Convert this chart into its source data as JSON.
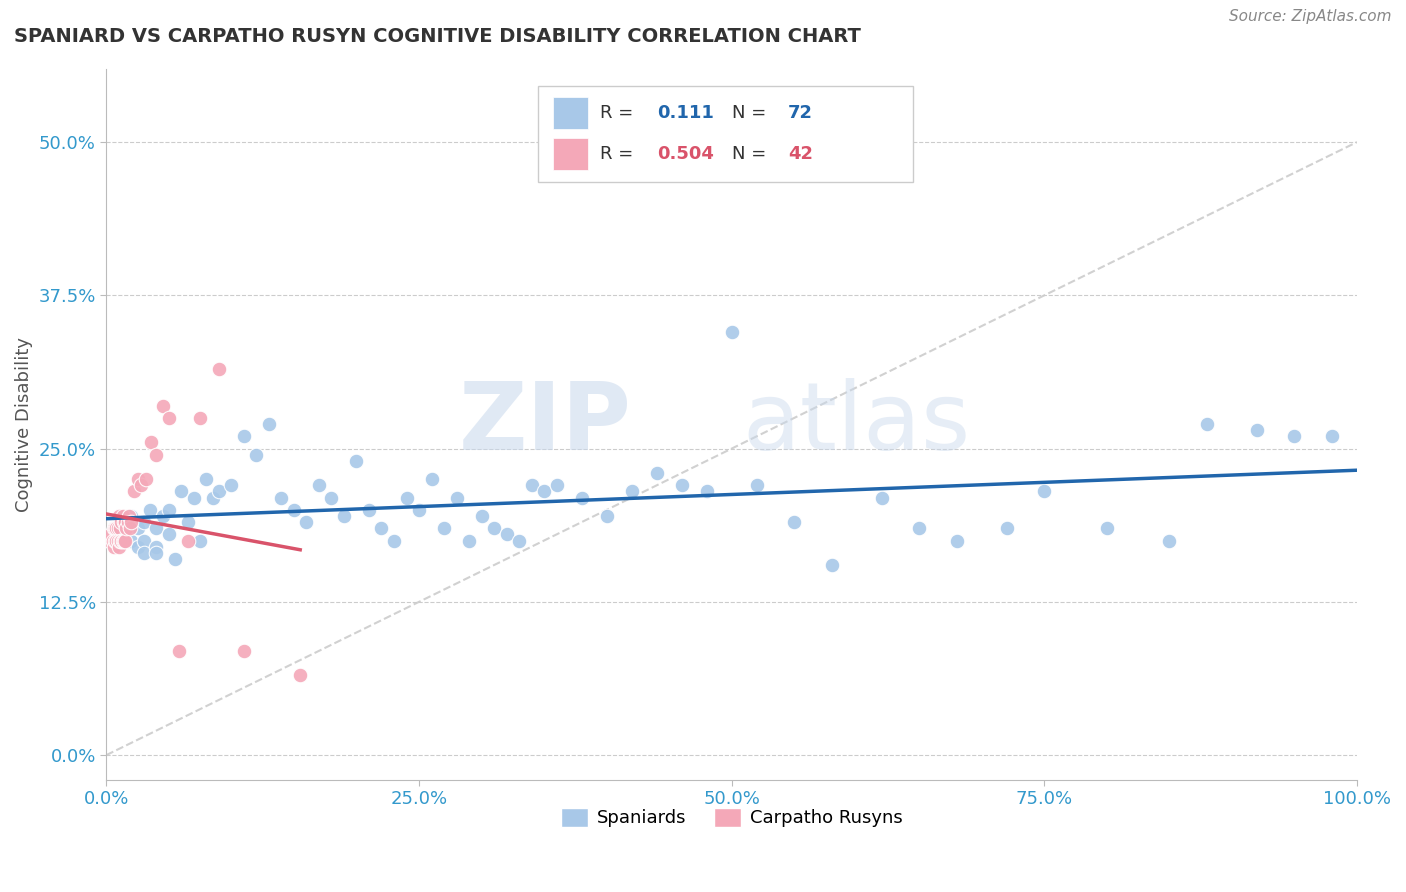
{
  "title": "SPANIARD VS CARPATHO RUSYN COGNITIVE DISABILITY CORRELATION CHART",
  "source": "Source: ZipAtlas.com",
  "xlabel": "",
  "ylabel": "Cognitive Disability",
  "xlim": [
    0,
    1.0
  ],
  "ylim": [
    -0.02,
    0.56
  ],
  "yticks": [
    0.0,
    0.125,
    0.25,
    0.375,
    0.5
  ],
  "ytick_labels": [
    "0.0%",
    "12.5%",
    "25.0%",
    "37.5%",
    "50.0%"
  ],
  "xticks": [
    0.0,
    0.25,
    0.5,
    0.75,
    1.0
  ],
  "xtick_labels": [
    "0.0%",
    "25.0%",
    "50.0%",
    "75.0%",
    "100.0%"
  ],
  "blue_color": "#a8c8e8",
  "pink_color": "#f4a8b8",
  "blue_line_color": "#2166ac",
  "pink_line_color": "#d9536a",
  "ref_line_color": "#cccccc",
  "watermark_zip": "ZIP",
  "watermark_atlas": "atlas",
  "legend_R_blue": "0.111",
  "legend_N_blue": "72",
  "legend_R_pink": "0.504",
  "legend_N_pink": "42",
  "blue_scatter_x": [
    0.01,
    0.015,
    0.02,
    0.02,
    0.025,
    0.025,
    0.03,
    0.03,
    0.03,
    0.035,
    0.04,
    0.04,
    0.04,
    0.045,
    0.05,
    0.05,
    0.055,
    0.06,
    0.065,
    0.07,
    0.075,
    0.08,
    0.085,
    0.09,
    0.1,
    0.11,
    0.12,
    0.13,
    0.14,
    0.15,
    0.16,
    0.17,
    0.18,
    0.19,
    0.2,
    0.21,
    0.22,
    0.23,
    0.24,
    0.25,
    0.26,
    0.27,
    0.28,
    0.29,
    0.3,
    0.31,
    0.32,
    0.33,
    0.34,
    0.35,
    0.36,
    0.38,
    0.4,
    0.42,
    0.44,
    0.46,
    0.48,
    0.5,
    0.52,
    0.55,
    0.58,
    0.62,
    0.65,
    0.68,
    0.72,
    0.75,
    0.8,
    0.85,
    0.88,
    0.92,
    0.95,
    0.98
  ],
  "blue_scatter_y": [
    0.185,
    0.175,
    0.195,
    0.175,
    0.185,
    0.17,
    0.19,
    0.175,
    0.165,
    0.2,
    0.185,
    0.17,
    0.165,
    0.195,
    0.2,
    0.18,
    0.16,
    0.215,
    0.19,
    0.21,
    0.175,
    0.225,
    0.21,
    0.215,
    0.22,
    0.26,
    0.245,
    0.27,
    0.21,
    0.2,
    0.19,
    0.22,
    0.21,
    0.195,
    0.24,
    0.2,
    0.185,
    0.175,
    0.21,
    0.2,
    0.225,
    0.185,
    0.21,
    0.175,
    0.195,
    0.185,
    0.18,
    0.175,
    0.22,
    0.215,
    0.22,
    0.21,
    0.195,
    0.215,
    0.23,
    0.22,
    0.215,
    0.345,
    0.22,
    0.19,
    0.155,
    0.21,
    0.185,
    0.175,
    0.185,
    0.215,
    0.185,
    0.175,
    0.27,
    0.265,
    0.26,
    0.26
  ],
  "pink_scatter_x": [
    0.003,
    0.004,
    0.005,
    0.006,
    0.006,
    0.007,
    0.007,
    0.008,
    0.008,
    0.009,
    0.009,
    0.01,
    0.01,
    0.011,
    0.011,
    0.012,
    0.012,
    0.013,
    0.013,
    0.014,
    0.014,
    0.015,
    0.015,
    0.016,
    0.017,
    0.018,
    0.019,
    0.02,
    0.022,
    0.025,
    0.028,
    0.032,
    0.036,
    0.04,
    0.045,
    0.05,
    0.058,
    0.065,
    0.075,
    0.09,
    0.11,
    0.155
  ],
  "pink_scatter_y": [
    0.175,
    0.18,
    0.175,
    0.185,
    0.17,
    0.185,
    0.175,
    0.185,
    0.175,
    0.185,
    0.175,
    0.195,
    0.17,
    0.185,
    0.175,
    0.19,
    0.175,
    0.195,
    0.175,
    0.19,
    0.175,
    0.19,
    0.175,
    0.185,
    0.19,
    0.195,
    0.185,
    0.19,
    0.215,
    0.225,
    0.22,
    0.225,
    0.255,
    0.245,
    0.285,
    0.275,
    0.085,
    0.175,
    0.275,
    0.315,
    0.085,
    0.065
  ]
}
